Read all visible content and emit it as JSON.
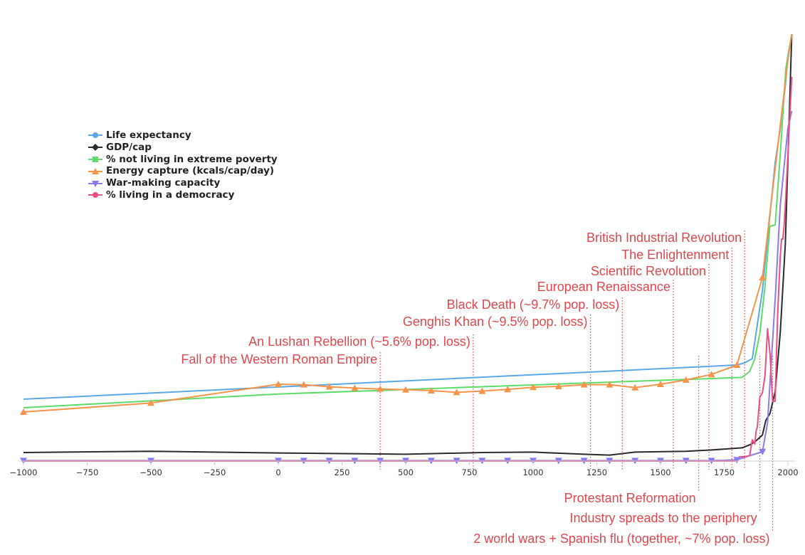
{
  "chart_data": {
    "type": "line",
    "title": "",
    "xlabel": "",
    "ylabel": "",
    "xlim": [
      -1000,
      2015
    ],
    "ylim": [
      0,
      100
    ],
    "x_ticks": [
      "−1000",
      "−750",
      "−500",
      "−250",
      "0",
      "250",
      "500",
      "750",
      "1000",
      "1250",
      "1500",
      "1750",
      "2000"
    ],
    "x_tick_values": [
      -1000,
      -750,
      -500,
      -250,
      0,
      250,
      500,
      750,
      1000,
      1250,
      1500,
      1750,
      2000
    ],
    "grid": false,
    "legend_placement": "upper-left",
    "series": [
      {
        "name": "Life expectancy",
        "color": "#5aa9e6",
        "marker": "circle",
        "x": [
          -1000,
          1800,
          1830,
          1860,
          1900,
          1920,
          1950,
          1970,
          1990,
          2000,
          2015
        ],
        "y": [
          14.5,
          22.5,
          23,
          24,
          40,
          52,
          70,
          78,
          88,
          95,
          100
        ]
      },
      {
        "name": "GDP/cap",
        "color": "#2b2b2b",
        "marker": "diamond",
        "x": [
          -1000,
          -500,
          0,
          500,
          800,
          1000,
          1200,
          1300,
          1400,
          1600,
          1700,
          1820,
          1850,
          1870,
          1900,
          1913,
          1930,
          1950,
          1970,
          1990,
          2015
        ],
        "y": [
          2.0,
          2.3,
          1.9,
          1.6,
          2.0,
          2.1,
          1.6,
          1.4,
          2.1,
          2.3,
          2.6,
          3.1,
          3.8,
          4.5,
          6.1,
          9.5,
          11.2,
          16.3,
          30.2,
          51,
          100
        ]
      },
      {
        "name": "% not living in extreme poverty",
        "color": "#5ddc6a",
        "marker": "square",
        "x": [
          -1000,
          0,
          1820,
          1850,
          1870,
          1890,
          1910,
          1929,
          1950,
          1970,
          1992,
          2015
        ],
        "y": [
          12.5,
          15.7,
          19.6,
          21,
          24,
          30,
          41,
          55,
          55.3,
          72,
          92,
          100
        ]
      },
      {
        "name": "Energy capture (kcals/cap/day)",
        "color": "#f5944a",
        "marker": "triangle-up",
        "x": [
          -1000,
          -500,
          0,
          100,
          200,
          300,
          400,
          500,
          600,
          700,
          800,
          900,
          1000,
          1100,
          1200,
          1300,
          1400,
          1500,
          1600,
          1700,
          1800,
          1900,
          2000,
          2015
        ],
        "y": [
          11.5,
          13.6,
          18.0,
          17.9,
          17.4,
          17.1,
          16.9,
          16.7,
          16.5,
          16.1,
          16.4,
          16.8,
          17.3,
          17.5,
          17.9,
          17.9,
          17.2,
          18.0,
          19.0,
          20.3,
          22.5,
          43,
          94,
          100
        ]
      },
      {
        "name": "War-making capacity",
        "color": "#8b7aea",
        "marker": "triangle-down",
        "x": [
          -1000,
          -500,
          0,
          100,
          200,
          300,
          400,
          500,
          600,
          700,
          800,
          900,
          1000,
          1100,
          1200,
          1300,
          1400,
          1500,
          1600,
          1700,
          1800,
          1900,
          1920,
          1950,
          1970,
          2000,
          2015
        ],
        "y": [
          0.1,
          0.1,
          0.1,
          0.1,
          0.1,
          0.1,
          0.1,
          0.1,
          0.1,
          0.1,
          0.1,
          0.1,
          0.1,
          0.1,
          0.1,
          0.1,
          0.1,
          0.1,
          0.1,
          0.1,
          0.3,
          2.2,
          9,
          38,
          60,
          78,
          82
        ]
      },
      {
        "name": "% living in a democracy",
        "color": "#ec4f85",
        "marker": "circle",
        "x": [
          -1000,
          1800,
          1810,
          1830,
          1850,
          1860,
          1870,
          1875,
          1880,
          1890,
          1900,
          1910,
          1920,
          1930,
          1940,
          1950,
          1955,
          1960,
          1970,
          1975,
          1980,
          1985,
          1990,
          2000,
          2015
        ],
        "y": [
          0,
          0,
          1,
          1,
          1.3,
          5,
          4,
          7,
          8,
          15,
          16,
          20,
          31,
          25,
          14,
          14,
          25,
          35,
          48,
          52,
          52,
          55,
          60,
          72,
          90
        ]
      }
    ],
    "annotations": [
      {
        "text": "Fall of the Western Roman Empire",
        "x": 400,
        "side": "above"
      },
      {
        "text": "An Lushan Rebellion (~5.6% pop. loss)",
        "x": 765,
        "side": "above"
      },
      {
        "text": "Genghis Khan (~9.5% pop. loss)",
        "x": 1225,
        "side": "above"
      },
      {
        "text": "Black Death (~9.7% pop. loss)",
        "x": 1350,
        "side": "above"
      },
      {
        "text": "European Renaissance",
        "x": 1550,
        "side": "above"
      },
      {
        "text": "Scientific Revolution",
        "x": 1690,
        "side": "above"
      },
      {
        "text": "The Enlightenment",
        "x": 1780,
        "side": "above"
      },
      {
        "text": "British Industrial Revolution",
        "x": 1830,
        "side": "above"
      },
      {
        "text": "Protestant Reformation",
        "x": 1650,
        "side": "below"
      },
      {
        "text": "Industry spreads to the periphery",
        "x": 1890,
        "side": "below"
      },
      {
        "text": "2 world wars + Spanish flu (together, ~7%  pop. loss)",
        "x": 1940,
        "side": "below"
      }
    ]
  }
}
